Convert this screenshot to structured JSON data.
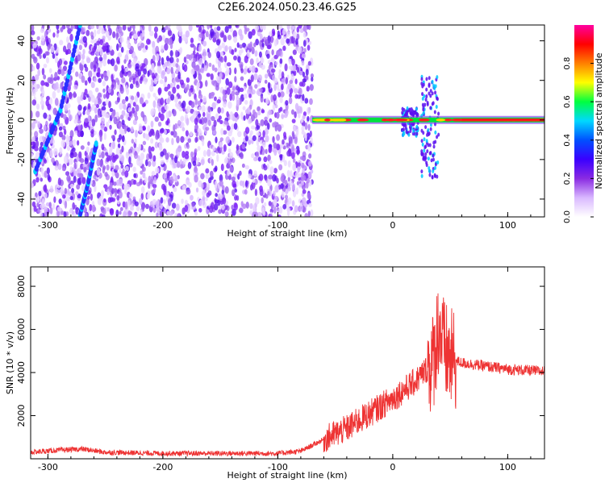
{
  "title": "C2E6.2024.050.23.46.G25",
  "chart_data": [
    {
      "type": "heatmap",
      "xlabel": "Height of straight line (km)",
      "ylabel": "Frequency (Hz)",
      "xlim": [
        -315,
        132
      ],
      "ylim": [
        -49,
        48
      ],
      "xticks": [
        -300,
        -200,
        -100,
        0,
        100
      ],
      "yticks": [
        -40,
        -20,
        0,
        20,
        40
      ],
      "colorbar": {
        "label": "Normalized spectral amplitude",
        "range": [
          0,
          1
        ],
        "ticks": [
          0.0,
          0.2,
          0.4,
          0.6,
          0.8
        ],
        "colors": [
          "#ffffff",
          "#d9b8ff",
          "#8a2be2",
          "#3a00ff",
          "#0050ff",
          "#00d8ff",
          "#00ff40",
          "#ffff00",
          "#ff8000",
          "#ff0000",
          "#ff00a0"
        ]
      },
      "features": {
        "noise_region_x": [
          -315,
          -70
        ],
        "tone_line": {
          "x": [
            -70,
            132
          ],
          "frequency": 0
        },
        "diagonal_tracks": [
          {
            "x": [
              -311,
              -289,
              -272
            ],
            "y": [
              -26,
              5,
              48
            ]
          },
          {
            "x": [
              -272,
              -265,
              -258
            ],
            "y": [
              -48,
              -32,
              -12
            ]
          }
        ],
        "bursts": [
          {
            "x": [
              8,
              22
            ],
            "y": [
              -8,
              6
            ]
          },
          {
            "x": [
              25,
              40
            ],
            "y": [
              -30,
              22
            ]
          }
        ]
      }
    },
    {
      "type": "line",
      "xlabel": "Height of straight line (km)",
      "ylabel": "SNR (10 * v/v)",
      "xlim": [
        -315,
        132
      ],
      "ylim": [
        0,
        8900
      ],
      "xticks": [
        -300,
        -200,
        -100,
        0,
        100
      ],
      "yticks": [
        2000,
        4000,
        6000,
        8000
      ],
      "color": "#ee3333",
      "series": [
        {
          "x": [
            -315,
            -290,
            -270,
            -250,
            -200,
            -150,
            -100,
            -80,
            -60,
            -40,
            -20,
            0,
            20,
            30,
            35,
            40,
            45,
            50,
            60,
            80,
            100,
            132
          ],
          "y": [
            300,
            400,
            450,
            300,
            250,
            250,
            250,
            350,
            900,
            1400,
            2100,
            2800,
            3600,
            4200,
            4500,
            6200,
            5000,
            4600,
            4450,
            4300,
            4150,
            4050
          ]
        }
      ]
    }
  ]
}
